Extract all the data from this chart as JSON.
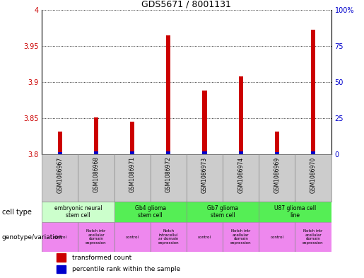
{
  "title": "GDS5671 / 8001131",
  "samples": [
    "GSM1086967",
    "GSM1086968",
    "GSM1086971",
    "GSM1086972",
    "GSM1086973",
    "GSM1086974",
    "GSM1086969",
    "GSM1086970"
  ],
  "red_values": [
    3.831,
    3.851,
    3.845,
    3.965,
    3.888,
    3.908,
    3.831,
    3.972
  ],
  "blue_values": [
    3.803,
    3.804,
    3.804,
    3.804,
    3.804,
    3.804,
    3.803,
    3.804
  ],
  "bar_base": 3.8,
  "ylim_left": [
    3.8,
    4.0
  ],
  "ylim_right": [
    0,
    100
  ],
  "yticks_left": [
    3.8,
    3.85,
    3.9,
    3.95,
    4.0
  ],
  "yticks_right": [
    0,
    25,
    50,
    75,
    100
  ],
  "cell_types": [
    {
      "label": "embryonic neural\nstem cell",
      "start": 0,
      "end": 2,
      "color": "#ccffcc"
    },
    {
      "label": "Gb4 glioma\nstem cell",
      "start": 2,
      "end": 4,
      "color": "#55ee55"
    },
    {
      "label": "Gb7 glioma\nstem cell",
      "start": 4,
      "end": 6,
      "color": "#55ee55"
    },
    {
      "label": "U87 glioma cell\nline",
      "start": 6,
      "end": 8,
      "color": "#55ee55"
    }
  ],
  "genotype_rows": [
    {
      "label": "control",
      "start": 0,
      "end": 1,
      "color": "#ee88ee"
    },
    {
      "label": "Notch intr\nacellular\ndomain\nexpression",
      "start": 1,
      "end": 2,
      "color": "#ee88ee"
    },
    {
      "label": "control",
      "start": 2,
      "end": 3,
      "color": "#ee88ee"
    },
    {
      "label": "Notch\nintracellul\nar domain\nexpression",
      "start": 3,
      "end": 4,
      "color": "#ee88ee"
    },
    {
      "label": "control",
      "start": 4,
      "end": 5,
      "color": "#ee88ee"
    },
    {
      "label": "Notch intr\nacellular\ndomain\nexpression",
      "start": 5,
      "end": 6,
      "color": "#ee88ee"
    },
    {
      "label": "control",
      "start": 6,
      "end": 7,
      "color": "#ee88ee"
    },
    {
      "label": "Notch intr\nacellular\ndomain\nexpression",
      "start": 7,
      "end": 8,
      "color": "#ee88ee"
    }
  ],
  "left_axis_color": "#cc0000",
  "right_axis_color": "#0000cc",
  "bar_red_color": "#cc0000",
  "bar_blue_color": "#0000cc",
  "grid_color": "#000000",
  "sample_box_color": "#cccccc",
  "bar_width": 0.12
}
